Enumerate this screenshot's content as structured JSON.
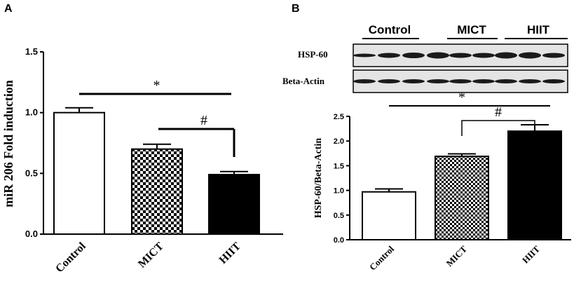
{
  "panels": {
    "a_label": "A",
    "b_label": "B"
  },
  "blot": {
    "groups": [
      "Control",
      "MICT",
      "HIIT"
    ],
    "rows": [
      "HSP-60",
      "Beta-Actin"
    ]
  },
  "colors": {
    "control": "#ffffff",
    "hiit": "#000000",
    "axis": "#000000"
  },
  "chart_data": [
    {
      "type": "bar",
      "panel": "A",
      "categories": [
        "Control",
        "MICT",
        "HIIT"
      ],
      "values": [
        1.0,
        0.7,
        0.49
      ],
      "errors": [
        0.04,
        0.04,
        0.025
      ],
      "fills": [
        "white",
        "checkerboard",
        "black"
      ],
      "ylabel": "miR 206 Fold induction",
      "ylim": [
        0,
        1.5
      ],
      "yticks": [
        "0.0",
        "0.5",
        "1.0",
        "1.5"
      ],
      "annotations": [
        {
          "symbol": "*",
          "from": "Control",
          "to": "HIIT"
        },
        {
          "symbol": "#",
          "from": "MICT",
          "to": "HIIT"
        }
      ]
    },
    {
      "type": "bar",
      "panel": "B",
      "categories": [
        "Control",
        "MICT",
        "HIIT"
      ],
      "values": [
        0.97,
        1.69,
        2.2
      ],
      "errors": [
        0.06,
        0.05,
        0.13
      ],
      "fills": [
        "white",
        "checkerboard",
        "black"
      ],
      "ylabel": "HSP-60/Beta-Actin",
      "ylim": [
        0,
        2.5
      ],
      "yticks": [
        "0.0",
        "0.5",
        "1.0",
        "1.5",
        "2.0",
        "2.5"
      ],
      "annotations": [
        {
          "symbol": "*",
          "from": "Control",
          "to": "HIIT"
        },
        {
          "symbol": "#",
          "from": "MICT",
          "to": "HIIT"
        }
      ]
    }
  ]
}
